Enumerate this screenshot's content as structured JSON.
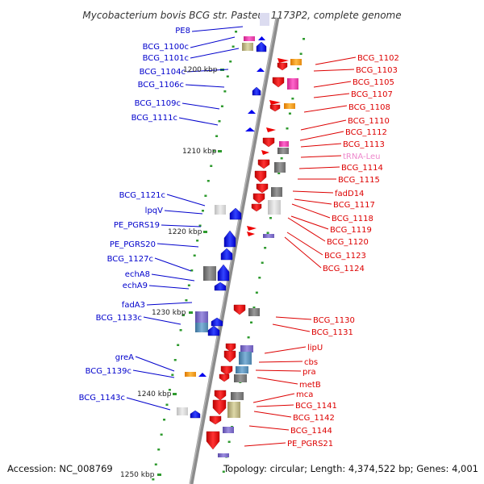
{
  "title": "Mycobacterium bovis BCG str. Pasteur 1173P2, complete genome",
  "accession": "Accession: NC_008769",
  "topology": "Topology: circular; Length: 4,374,522 bp; Genes: 4,001",
  "colors": {
    "forward_arrow": "#ee0000",
    "reverse_arrow": "#0000ee",
    "forward_label": "#dd0000",
    "reverse_label": "#0000cc",
    "trna_label": "#ee88cc",
    "backbone": "#8c8c8c",
    "tick": "#2e9a2e"
  },
  "scale_labels": [
    "1200 kbp",
    "1210 kbp",
    "1220 kbp",
    "1230 kbp",
    "1240 kbp",
    "1250 kbp"
  ],
  "left_labels": [
    "PE8",
    "BCG_1100c",
    "BCG_1101c",
    "BCG_1104c",
    "BCG_1106c",
    "BCG_1109c",
    "BCG_1111c",
    "BCG_1121c",
    "lpqV",
    "PE_PGRS19",
    "PE_PGRS20",
    "BCG_1127c",
    "echA8",
    "echA9",
    "fadA3",
    "BCG_1133c",
    "greA",
    "BCG_1139c",
    "BCG_1143c"
  ],
  "right_labels": [
    "BCG_1102",
    "BCG_1103",
    "BCG_1105",
    "BCG_1107",
    "BCG_1108",
    "BCG_1110",
    "BCG_1112",
    "BCG_1113",
    "tRNA-Leu",
    "BCG_1114",
    "BCG_1115",
    "fadD14",
    "BCG_1117",
    "BCG_1118",
    "BCG_1119",
    "BCG_1120",
    "BCG_1123",
    "BCG_1124",
    "BCG_1130",
    "BCG_1131",
    "lipU",
    "cbs",
    "pra",
    "metB",
    "mca",
    "BCG_1141",
    "BCG_1142",
    "BCG_1144",
    "PE_PGRS21"
  ]
}
